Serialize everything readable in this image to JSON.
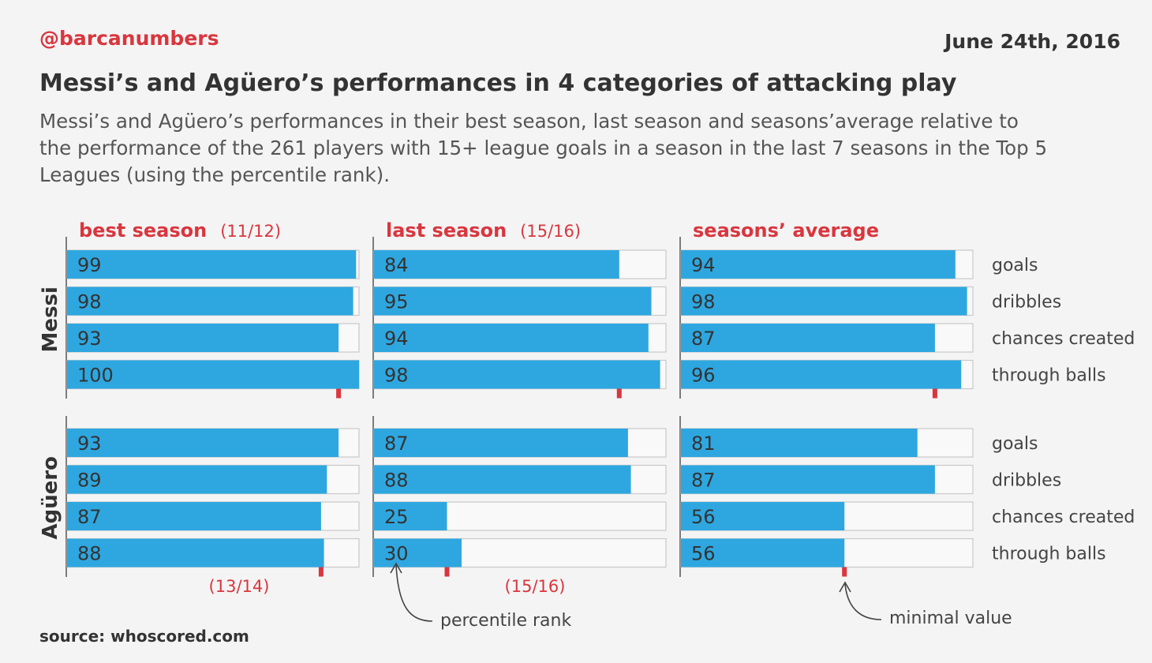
{
  "header": {
    "handle": "@barcanumbers",
    "date": "June 24th, 2016",
    "title": "Messi’s and Agüero’s performances in 4 categories of attacking play",
    "subtitle": "Messi’s and Agüero’s performances in their best season, last season and seasons’average relative to the performance of the 261 players with 15+ league goals in a season in the last 7 seasons in the Top 5 Leagues (using the percentile rank)."
  },
  "source": "source: whoscored.com",
  "annotations": {
    "percentile_rank": "percentile rank",
    "minimal_value": "minimal value"
  },
  "colors": {
    "bar": "#2ea7e0",
    "accent": "#d9363e",
    "marker": "#d9363e"
  },
  "chart_data": {
    "type": "bar",
    "orientation": "horizontal",
    "xlim": [
      0,
      100
    ],
    "categories": [
      "goals",
      "dribbles",
      "chances created",
      "through balls"
    ],
    "columns": [
      {
        "title": "best season",
        "sub": "(11/12)",
        "sub_bottom": "(13/14)"
      },
      {
        "title": "last season",
        "sub": "(15/16)",
        "sub_bottom": "(15/16)"
      },
      {
        "title": "seasons’ average",
        "sub": "",
        "sub_bottom": ""
      }
    ],
    "players": [
      {
        "name": "Messi",
        "panels": [
          {
            "values": [
              99,
              98,
              93,
              100
            ],
            "minimal_value": 93
          },
          {
            "values": [
              84,
              95,
              94,
              98
            ],
            "minimal_value": 84
          },
          {
            "values": [
              94,
              98,
              87,
              96
            ],
            "minimal_value": 87
          }
        ]
      },
      {
        "name": "Agüero",
        "panels": [
          {
            "values": [
              93,
              89,
              87,
              88
            ],
            "minimal_value": 87
          },
          {
            "values": [
              87,
              88,
              25,
              30
            ],
            "minimal_value": 25
          },
          {
            "values": [
              81,
              87,
              56,
              56
            ],
            "minimal_value": 56
          }
        ]
      }
    ]
  }
}
